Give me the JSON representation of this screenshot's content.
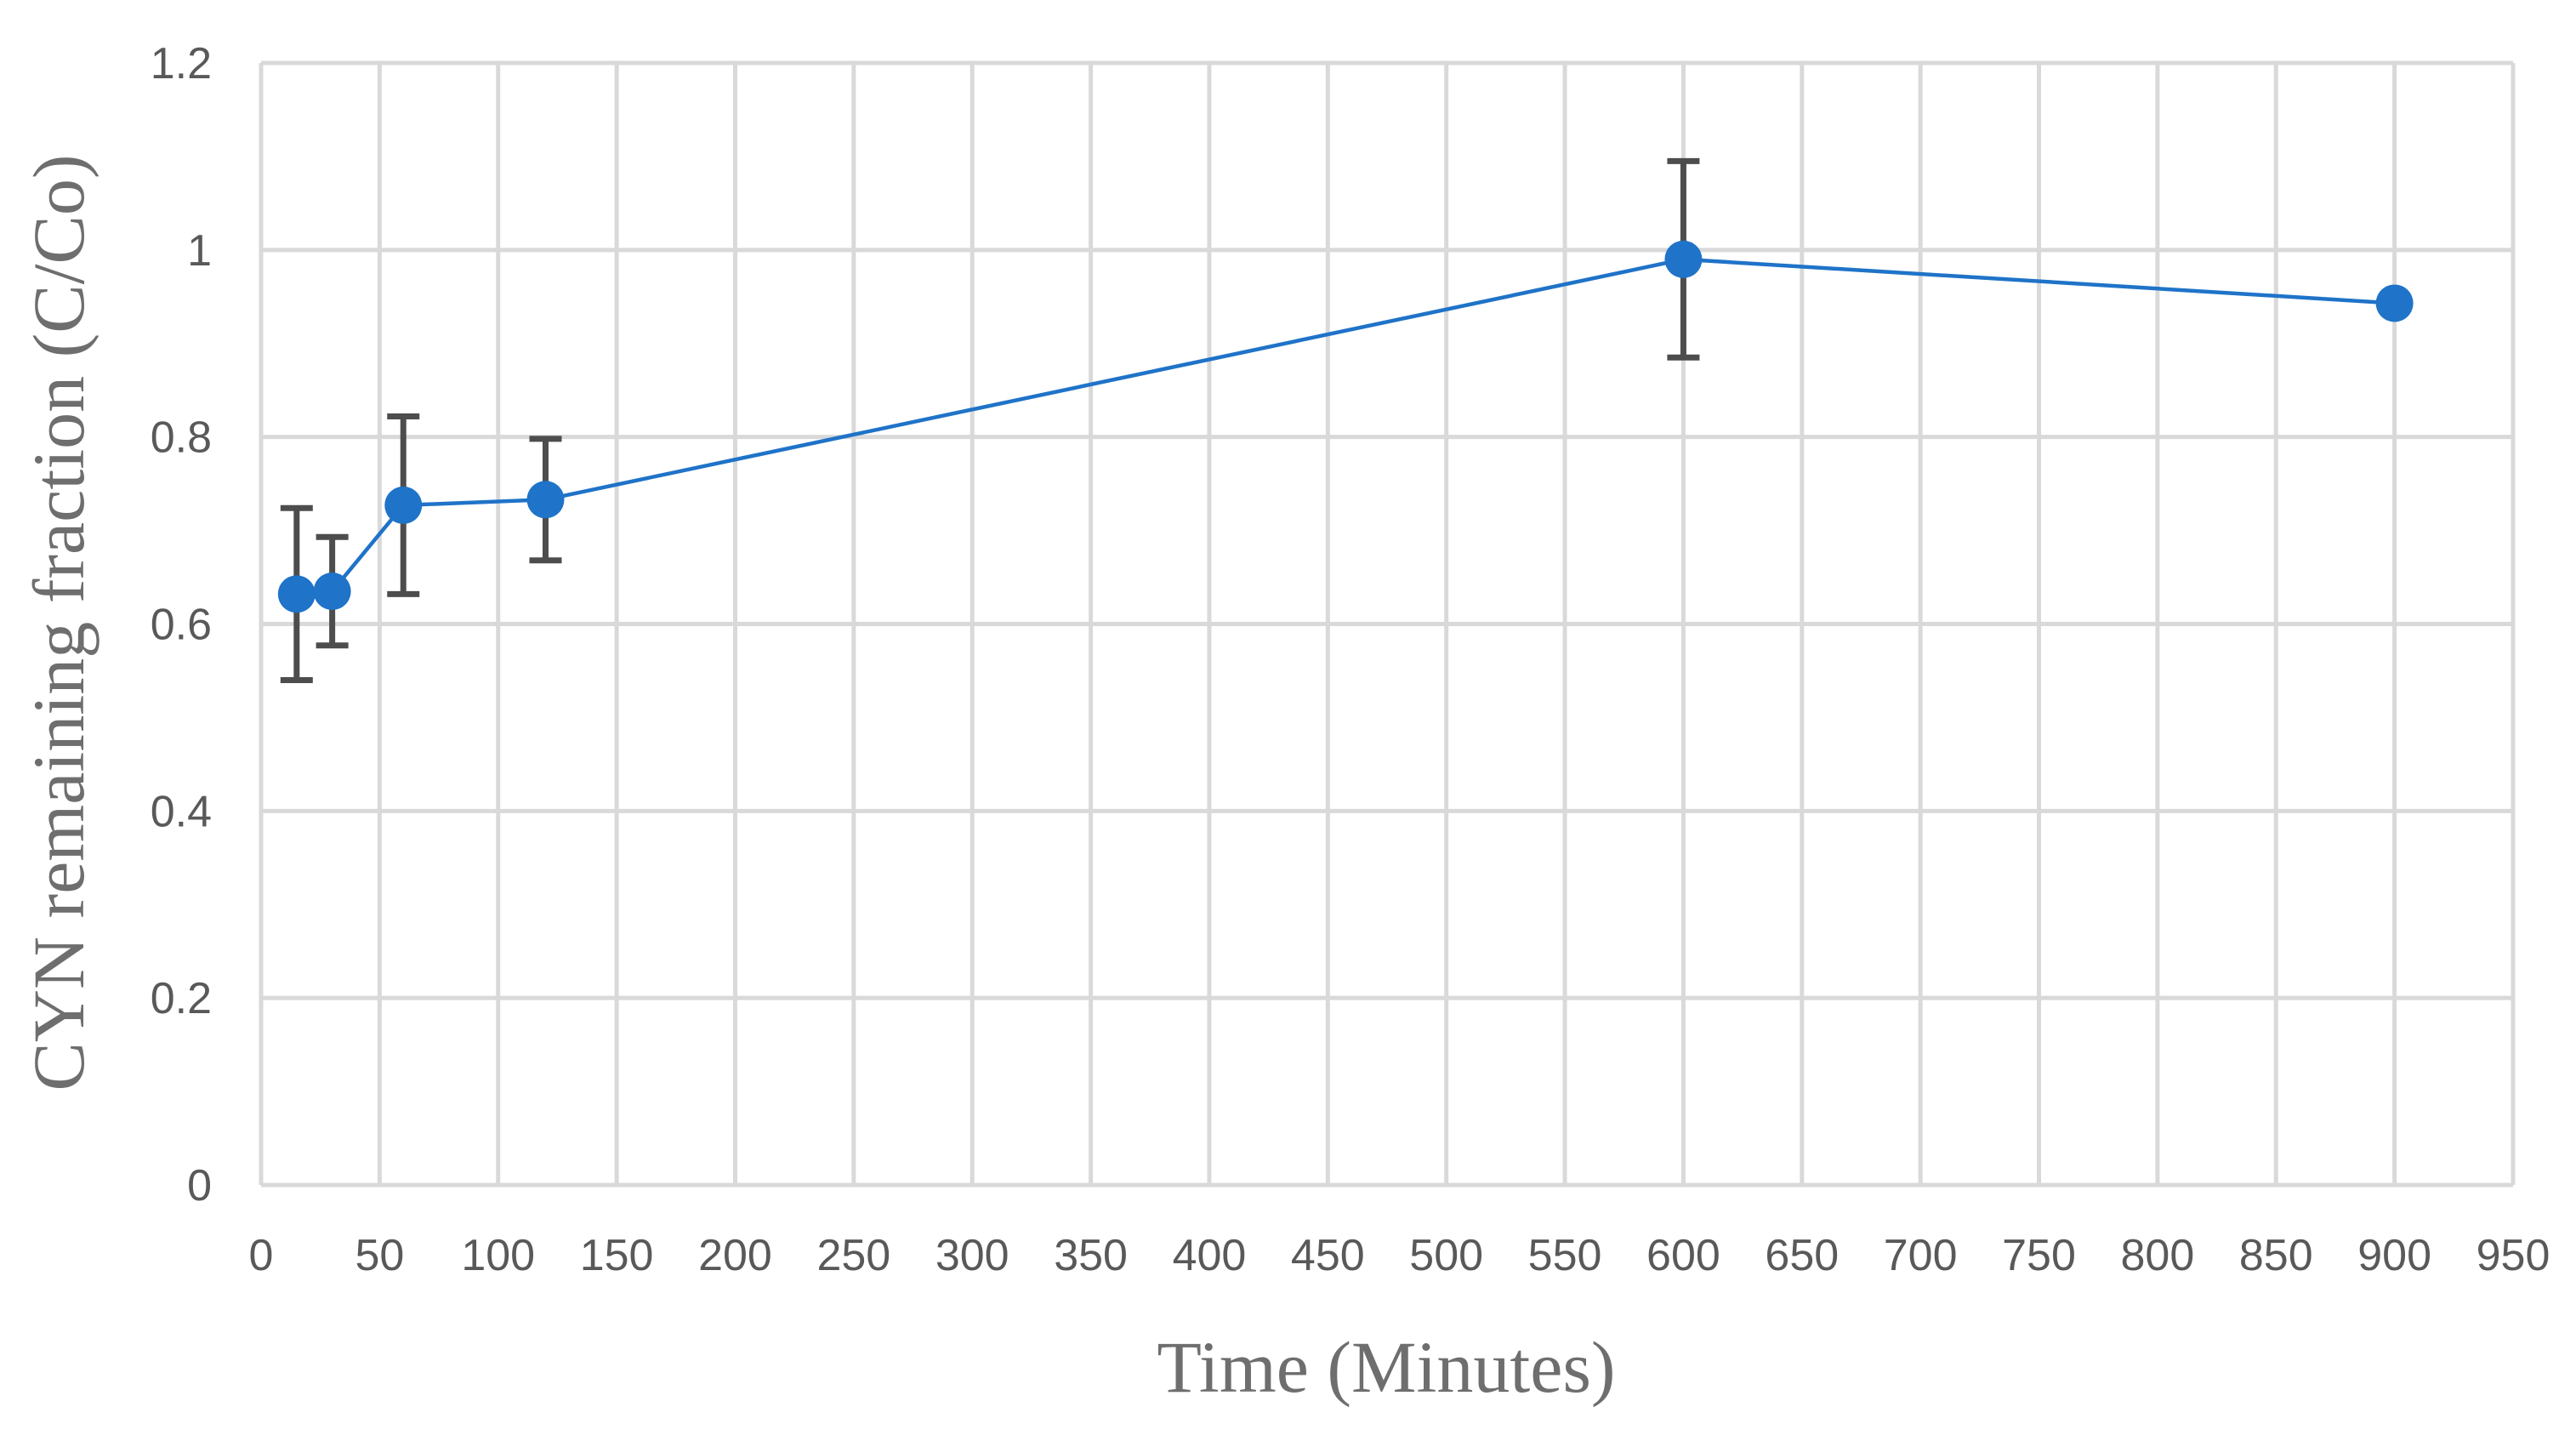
{
  "chart_data": {
    "type": "line",
    "title": "",
    "xlabel": "Time (Minutes)",
    "ylabel": "CYN remaining fraction (C/Co)",
    "xlim": [
      0,
      950
    ],
    "ylim": [
      0,
      1.2
    ],
    "x_ticks": [
      "0",
      "50",
      "100",
      "150",
      "200",
      "250",
      "300",
      "350",
      "400",
      "450",
      "500",
      "550",
      "600",
      "650",
      "700",
      "750",
      "800",
      "850",
      "900",
      "950"
    ],
    "y_ticks": [
      "0",
      "0.2",
      "0.4",
      "0.6",
      "0.8",
      "1",
      "1.2"
    ],
    "grid": true,
    "legend": "none",
    "series": [
      {
        "color": "#1f73c8",
        "marker": "circle",
        "points": [
          {
            "x": 15,
            "y": 0.632,
            "err_low": 0.092,
            "err_high": 0.092
          },
          {
            "x": 30,
            "y": 0.635,
            "err_low": 0.058,
            "err_high": 0.058
          },
          {
            "x": 60,
            "y": 0.727,
            "err_low": 0.095,
            "err_high": 0.095
          },
          {
            "x": 120,
            "y": 0.733,
            "err_low": 0.065,
            "err_high": 0.065
          },
          {
            "x": 600,
            "y": 0.99,
            "err_low": 0.105,
            "err_high": 0.105
          },
          {
            "x": 900,
            "y": 0.943
          }
        ]
      }
    ],
    "colors": {
      "grid": "#d9d9d9",
      "error_bar": "#4d4d4d",
      "tick_text": "#595959",
      "axis_title": "#6e6e6e"
    }
  }
}
